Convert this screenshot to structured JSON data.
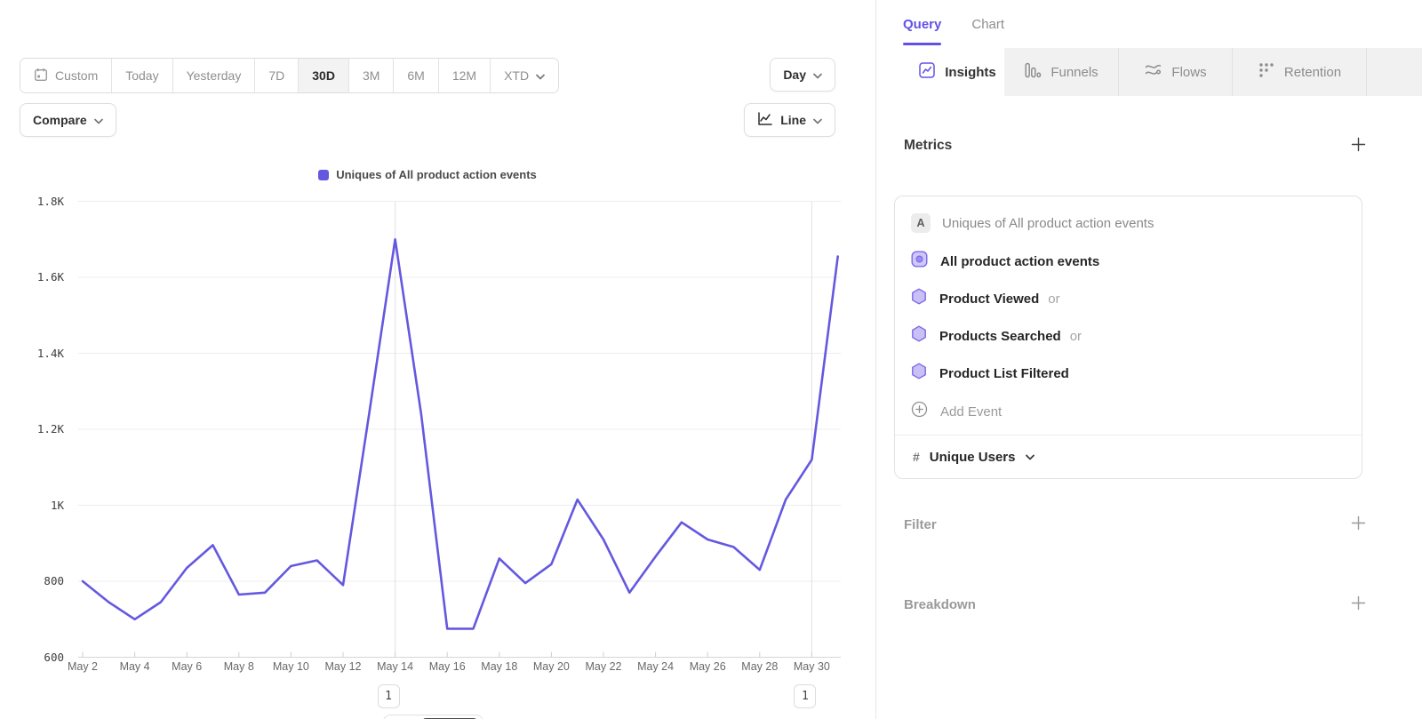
{
  "colors": {
    "accent_purple": "#6450e8",
    "line_purple": "#6458e0",
    "active_range_bg": "#f3f3f3",
    "tab_strip_bg": "#f1f1f2",
    "gridline": "#ececec"
  },
  "toolbar": {
    "ranges": [
      {
        "label": "Custom",
        "icon": "calendar-icon",
        "active": false,
        "chevron": false
      },
      {
        "label": "Today",
        "active": false,
        "chevron": false
      },
      {
        "label": "Yesterday",
        "active": false,
        "chevron": false
      },
      {
        "label": "7D",
        "active": false,
        "chevron": false
      },
      {
        "label": "30D",
        "active": true,
        "chevron": false
      },
      {
        "label": "3M",
        "active": false,
        "chevron": false
      },
      {
        "label": "6M",
        "active": false,
        "chevron": false
      },
      {
        "label": "12M",
        "active": false,
        "chevron": false
      },
      {
        "label": "XTD",
        "active": false,
        "chevron": true
      }
    ],
    "granularity_label": "Day",
    "compare_label": "Compare",
    "chart_type_label": "Line"
  },
  "chart_data": {
    "type": "line",
    "title": "",
    "legend": "Uniques of All product action events",
    "legend_position": "top-center",
    "grid": "horizontal",
    "x": [
      "May 2",
      "May 3",
      "May 4",
      "May 5",
      "May 6",
      "May 7",
      "May 8",
      "May 9",
      "May 10",
      "May 11",
      "May 12",
      "May 13",
      "May 14",
      "May 15",
      "May 16",
      "May 17",
      "May 18",
      "May 19",
      "May 20",
      "May 21",
      "May 22",
      "May 23",
      "May 24",
      "May 25",
      "May 26",
      "May 27",
      "May 28",
      "May 29",
      "May 30",
      "May 31"
    ],
    "x_tick_labels": [
      "May 2",
      "May 4",
      "May 6",
      "May 8",
      "May 10",
      "May 12",
      "May 14",
      "May 16",
      "May 18",
      "May 20",
      "May 22",
      "May 24",
      "May 26",
      "May 28",
      "May 30"
    ],
    "series": [
      {
        "name": "Uniques of All product action events",
        "color": "#6458e0",
        "values": [
          800,
          745,
          700,
          745,
          835,
          895,
          765,
          770,
          840,
          855,
          790,
          1240,
          1700,
          1240,
          675,
          675,
          860,
          795,
          845,
          1015,
          910,
          770,
          865,
          955,
          910,
          890,
          830,
          1015,
          1120,
          1655
        ]
      }
    ],
    "ylim": [
      600,
      1800
    ],
    "y_ticks": [
      {
        "value": 600,
        "label": "600"
      },
      {
        "value": 800,
        "label": "800"
      },
      {
        "value": 1000,
        "label": "1K"
      },
      {
        "value": 1200,
        "label": "1.2K"
      },
      {
        "value": 1400,
        "label": "1.4K"
      },
      {
        "value": 1600,
        "label": "1.6K"
      },
      {
        "value": 1800,
        "label": "1.8K"
      }
    ],
    "annotations": [
      {
        "x_label": "May 14",
        "day_index": 12,
        "label": "1"
      },
      {
        "x_label": "May 30",
        "day_index": 28,
        "label": "1"
      }
    ]
  },
  "query_pane": {
    "tabs": [
      {
        "label": "Query",
        "active": true
      },
      {
        "label": "Chart",
        "active": false
      }
    ],
    "report_tabs": [
      {
        "label": "Insights",
        "icon": "insights-icon",
        "active": true
      },
      {
        "label": "Funnels",
        "icon": "funnels-icon",
        "active": false
      },
      {
        "label": "Flows",
        "icon": "flows-icon",
        "active": false
      },
      {
        "label": "Retention",
        "icon": "retention-icon",
        "active": false
      }
    ],
    "metrics": {
      "title": "Metrics",
      "card": {
        "series_letter": "A",
        "series_header": "Uniques of All product action events",
        "events": [
          {
            "name": "All product action events",
            "icon": "event-group-icon",
            "suffix": ""
          },
          {
            "name": "Product Viewed",
            "icon": "event-hexagon-icon",
            "suffix": "or"
          },
          {
            "name": "Products Searched",
            "icon": "event-hexagon-icon",
            "suffix": "or"
          },
          {
            "name": "Product List Filtered",
            "icon": "event-hexagon-icon",
            "suffix": ""
          }
        ],
        "add_event_label": "Add Event",
        "measurement": {
          "symbol": "#",
          "label": "Unique Users"
        }
      }
    },
    "sections": [
      {
        "label": "Filter"
      },
      {
        "label": "Breakdown"
      }
    ]
  }
}
